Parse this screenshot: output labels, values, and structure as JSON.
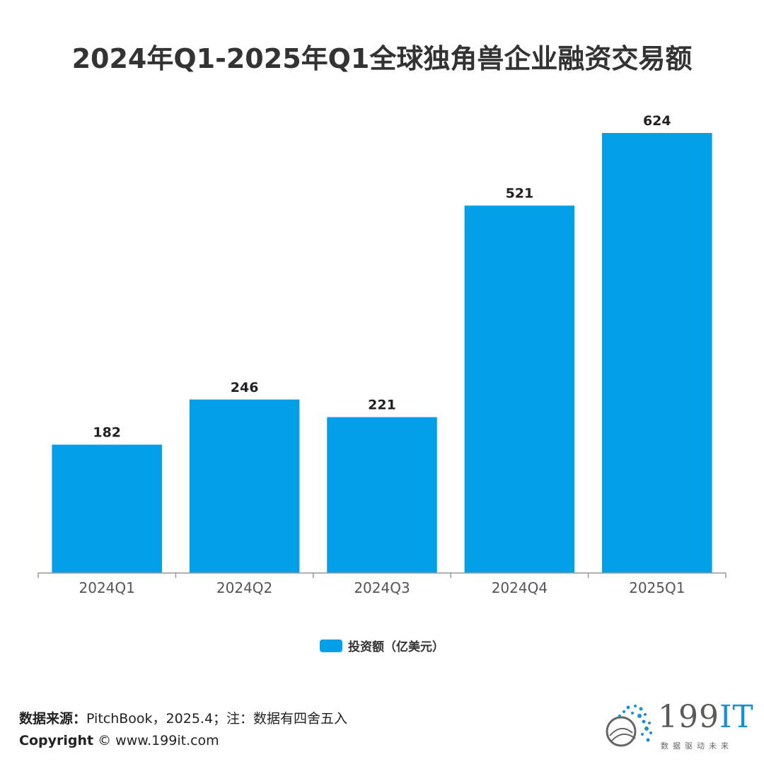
{
  "title": "2024年Q1-2025年Q1全球独角兽企业融资交易额",
  "colors": {
    "bar": "#009fe8",
    "axis": "#999999",
    "text": "#333333"
  },
  "chart_data": {
    "type": "bar",
    "categories": [
      "2024Q1",
      "2024Q2",
      "2024Q3",
      "2024Q4",
      "2025Q1"
    ],
    "series": [
      {
        "name": "投资额（亿美元）",
        "values": [
          182,
          246,
          221,
          521,
          624
        ]
      }
    ],
    "data_labels": [
      "182",
      "246",
      "221",
      "521",
      "624"
    ],
    "ylim": [
      0,
      650
    ],
    "grid": false,
    "legend": "bottom"
  },
  "legend": {
    "label": "投资额（亿美元）"
  },
  "footer": {
    "source_label": "数据来源：",
    "source_text": "PitchBook，2025.4；注：数据有四舍五入",
    "copyright_label": "Copyright",
    "copyright_text": "©  www.199it.com"
  },
  "logo": {
    "text_digits": "199",
    "text_it": "IT",
    "slogan": "数据驱动未来",
    "icon": "network-globe-icon"
  }
}
